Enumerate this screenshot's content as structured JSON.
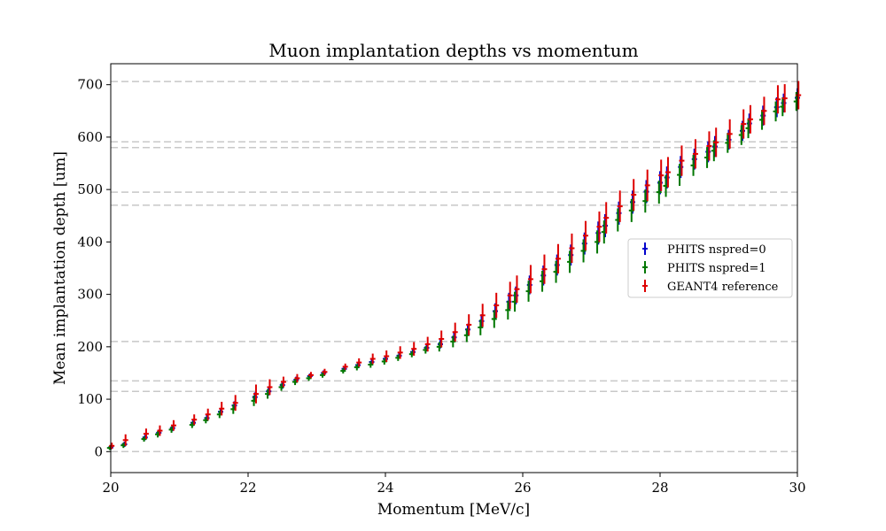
{
  "chart_data": {
    "type": "scatter",
    "title": "Muon implantation depths vs momentum",
    "xlabel": "Momentum [MeV/c]",
    "ylabel": "Mean implantation depth [um]",
    "xlim": [
      20,
      30
    ],
    "ylim": [
      -40,
      740
    ],
    "xticks": [
      20,
      22,
      24,
      26,
      28,
      30
    ],
    "yticks": [
      0,
      100,
      200,
      300,
      400,
      500,
      600,
      700
    ],
    "grid": false,
    "legend_position": "center-right",
    "reference_lines_y": [
      0,
      115,
      135,
      210,
      470,
      495,
      580,
      591,
      706
    ],
    "x": [
      20.0,
      20.2,
      20.5,
      20.7,
      20.9,
      21.2,
      21.4,
      21.6,
      21.8,
      22.1,
      22.3,
      22.5,
      22.7,
      22.9,
      23.1,
      23.4,
      23.6,
      23.8,
      24.0,
      24.2,
      24.4,
      24.6,
      24.8,
      25.0,
      25.2,
      25.4,
      25.6,
      25.8,
      25.9,
      26.1,
      26.3,
      26.5,
      26.7,
      26.9,
      27.1,
      27.2,
      27.4,
      27.6,
      27.8,
      28.0,
      28.1,
      28.3,
      28.5,
      28.7,
      28.8,
      29.0,
      29.2,
      29.3,
      29.5,
      29.7,
      29.8,
      30.0
    ],
    "series": [
      {
        "name": "PHITS nspred=0",
        "color": "#0000cc",
        "values": [
          8,
          14,
          27,
          36,
          45,
          55,
          64,
          76,
          88,
          104,
          115,
          127,
          137,
          144,
          150,
          158,
          165,
          171,
          177,
          183,
          190,
          198,
          205,
          218,
          233,
          249,
          268,
          286,
          298,
          318,
          336,
          356,
          375,
          397,
          417,
          431,
          455,
          476,
          496,
          513,
          523,
          543,
          558,
          572,
          582,
          595,
          612,
          626,
          641,
          657,
          665,
          675
        ],
        "errors": [
          4,
          5,
          5,
          6,
          6,
          6,
          6,
          7,
          8,
          9,
          8,
          7,
          6,
          5,
          5,
          5,
          6,
          6,
          6,
          6,
          6,
          7,
          8,
          9,
          11,
          13,
          15,
          17,
          17,
          18,
          19,
          20,
          20,
          21,
          22,
          22,
          22,
          22,
          22,
          22,
          21,
          21,
          20,
          20,
          20,
          19,
          19,
          19,
          19,
          19,
          18,
          18
        ]
      },
      {
        "name": "PHITS nspred=1",
        "color": "#007700",
        "values": [
          7,
          12,
          24,
          33,
          42,
          51,
          60,
          71,
          81,
          97,
          110,
          123,
          133,
          140,
          146,
          154,
          161,
          166,
          172,
          179,
          186,
          194,
          200,
          210,
          222,
          237,
          253,
          270,
          286,
          306,
          325,
          343,
          362,
          383,
          400,
          419,
          442,
          460,
          478,
          495,
          507,
          528,
          546,
          561,
          574,
          589,
          604,
          617,
          633,
          649,
          658,
          668
        ],
        "errors": [
          4,
          5,
          5,
          6,
          6,
          6,
          6,
          7,
          9,
          10,
          9,
          7,
          6,
          5,
          5,
          5,
          6,
          6,
          6,
          6,
          6,
          7,
          9,
          11,
          13,
          15,
          17,
          18,
          19,
          20,
          20,
          21,
          21,
          22,
          22,
          22,
          22,
          22,
          22,
          22,
          21,
          21,
          20,
          20,
          20,
          19,
          19,
          19,
          19,
          19,
          18,
          18
        ]
      },
      {
        "name": "GEANT4 reference",
        "color": "#dd0000",
        "values": [
          11,
          22,
          34,
          40,
          50,
          61,
          71,
          82,
          93,
          110,
          123,
          133,
          140,
          146,
          152,
          162,
          170,
          177,
          182,
          189,
          196,
          205,
          215,
          228,
          242,
          260,
          279,
          298,
          310,
          329,
          348,
          368,
          388,
          412,
          429,
          446,
          468,
          490,
          508,
          527,
          533,
          555,
          568,
          583,
          590,
          606,
          625,
          634,
          650,
          672,
          674,
          680
        ],
        "errors": [
          6,
          11,
          10,
          10,
          10,
          10,
          11,
          13,
          15,
          18,
          15,
          10,
          8,
          6,
          6,
          6,
          8,
          10,
          11,
          12,
          13,
          14,
          16,
          18,
          20,
          22,
          24,
          26,
          26,
          27,
          28,
          28,
          28,
          28,
          29,
          30,
          30,
          30,
          30,
          30,
          29,
          29,
          28,
          28,
          28,
          28,
          28,
          27,
          27,
          27,
          27,
          27
        ]
      }
    ]
  }
}
